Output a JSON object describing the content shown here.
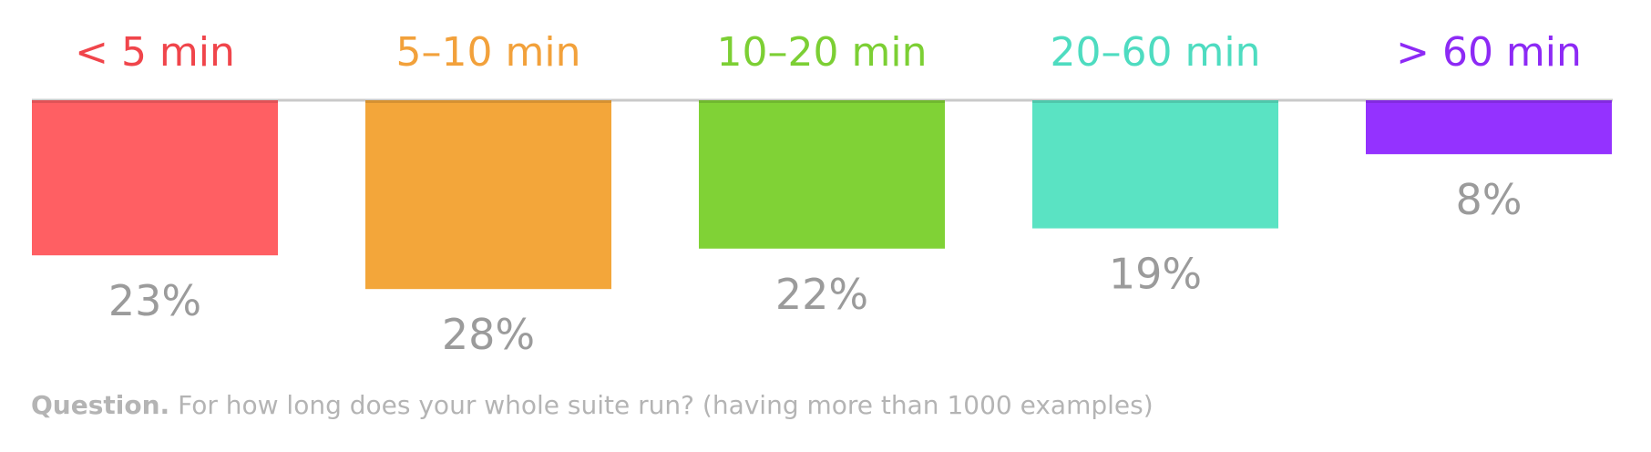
{
  "chart_data": {
    "type": "bar",
    "orientation": "hanging-from-top",
    "categories": [
      "< 5 min",
      "5–10 min",
      "10–20 min",
      "20–60 min",
      "> 60 min"
    ],
    "values": [
      23,
      28,
      22,
      19,
      8
    ],
    "value_labels": [
      "23%",
      "28%",
      "22%",
      "19%",
      "8%"
    ],
    "colors": [
      "#ff5f63",
      "#f3a63a",
      "#80d236",
      "#5ae3c3",
      "#9432ff"
    ],
    "label_colors": [
      "#f0454b",
      "#f2a13b",
      "#7ccf34",
      "#4edcc0",
      "#8d2af5"
    ],
    "baseline_color": "#c9c9c9",
    "value_label_color": "#9b9b9b",
    "ylim": [
      0,
      28
    ],
    "legend": "none",
    "grid": false
  },
  "caption": {
    "lead": "Question.",
    "text": " For how long does your whole suite run? (having more than 1000 examples)"
  }
}
